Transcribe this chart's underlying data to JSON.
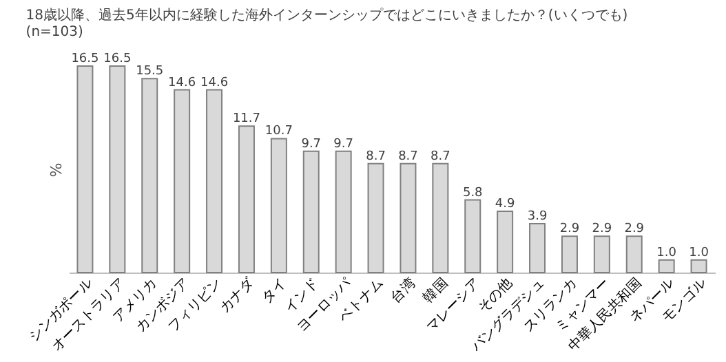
{
  "chart_data": {
    "type": "bar",
    "title": "18歳以降、過去5年以内に経験した海外インターンシップではどこにいきましたか？(いくつでも)",
    "subtitle": "(n=103)",
    "ylabel": "%",
    "categories": [
      "シンガポール",
      "オーストラリア",
      "アメリカ",
      "カンボジア",
      "フィリピン",
      "カナダ",
      "タイ",
      "インド",
      "ヨーロッパ",
      "ベトナム",
      "台湾",
      "韓国",
      "マレーシア",
      "その他",
      "バングラデシュ",
      "スリランカ",
      "ミャンマー",
      "中華人民共和国",
      "ネパール",
      "モンゴル"
    ],
    "values": [
      16.5,
      16.5,
      15.5,
      14.6,
      14.6,
      11.7,
      10.7,
      9.7,
      9.7,
      8.7,
      8.7,
      8.7,
      5.8,
      4.9,
      3.9,
      2.9,
      2.9,
      2.9,
      1.0,
      1.0
    ],
    "value_labels": [
      "16.5",
      "16.5",
      "15.5",
      "14.6",
      "14.6",
      "11.7",
      "10.7",
      "9.7",
      "9.7",
      "8.7",
      "8.7",
      "8.7",
      "5.8",
      "4.9",
      "3.9",
      "2.9",
      "2.9",
      "2.9",
      "1.0",
      "1.0"
    ],
    "color": "#d9d9d9",
    "grid": false
  }
}
